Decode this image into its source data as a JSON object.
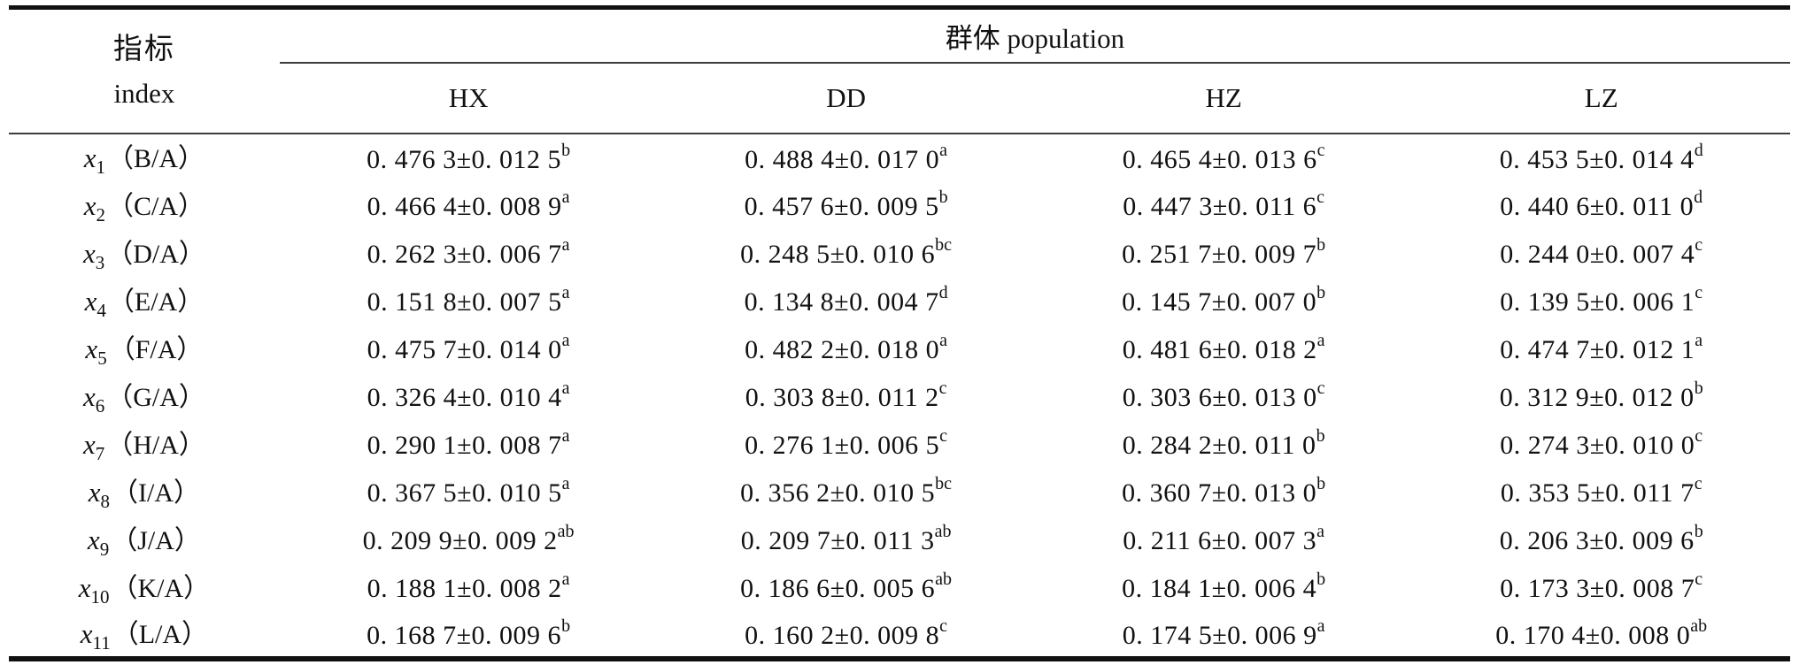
{
  "table": {
    "header": {
      "index_label_zh": "指标",
      "index_label_en": "index",
      "group_label": "群体 population",
      "populations": [
        "HX",
        "DD",
        "HZ",
        "LZ"
      ]
    },
    "rows": [
      {
        "var": "x",
        "sub": "1",
        "ratio": "（B/A）",
        "cells": [
          {
            "v": "0. 476 3±0. 012 5",
            "s": "b"
          },
          {
            "v": "0. 488 4±0. 017 0",
            "s": "a"
          },
          {
            "v": "0. 465 4±0. 013 6",
            "s": "c"
          },
          {
            "v": "0. 453 5±0. 014 4",
            "s": "d"
          }
        ]
      },
      {
        "var": "x",
        "sub": "2",
        "ratio": "（C/A）",
        "cells": [
          {
            "v": "0. 466 4±0. 008 9",
            "s": "a"
          },
          {
            "v": "0. 457 6±0. 009 5",
            "s": "b"
          },
          {
            "v": "0. 447 3±0. 011 6",
            "s": "c"
          },
          {
            "v": "0. 440 6±0. 011 0",
            "s": "d"
          }
        ]
      },
      {
        "var": "x",
        "sub": "3",
        "ratio": "（D/A）",
        "cells": [
          {
            "v": "0. 262 3±0. 006 7",
            "s": "a"
          },
          {
            "v": "0. 248 5±0. 010 6",
            "s": "bc"
          },
          {
            "v": "0. 251 7±0. 009 7",
            "s": "b"
          },
          {
            "v": "0. 244 0±0. 007 4",
            "s": "c"
          }
        ]
      },
      {
        "var": "x",
        "sub": "4",
        "ratio": "（E/A）",
        "cells": [
          {
            "v": "0. 151 8±0. 007 5",
            "s": "a"
          },
          {
            "v": "0. 134 8±0. 004 7",
            "s": "d"
          },
          {
            "v": "0. 145 7±0. 007 0",
            "s": "b"
          },
          {
            "v": "0. 139 5±0. 006 1",
            "s": "c"
          }
        ]
      },
      {
        "var": "x",
        "sub": "5",
        "ratio": "（F/A）",
        "cells": [
          {
            "v": "0. 475 7±0. 014 0",
            "s": "a"
          },
          {
            "v": "0. 482 2±0. 018 0",
            "s": "a"
          },
          {
            "v": "0. 481 6±0. 018 2",
            "s": "a"
          },
          {
            "v": "0. 474 7±0. 012 1",
            "s": "a"
          }
        ]
      },
      {
        "var": "x",
        "sub": "6",
        "ratio": "（G/A）",
        "cells": [
          {
            "v": "0. 326 4±0. 010 4",
            "s": "a"
          },
          {
            "v": "0. 303 8±0. 011 2",
            "s": "c"
          },
          {
            "v": "0. 303 6±0. 013 0",
            "s": "c"
          },
          {
            "v": "0. 312 9±0. 012 0",
            "s": "b"
          }
        ]
      },
      {
        "var": "x",
        "sub": "7",
        "ratio": "（H/A）",
        "cells": [
          {
            "v": "0. 290 1±0. 008 7",
            "s": "a"
          },
          {
            "v": "0. 276 1±0. 006 5",
            "s": "c"
          },
          {
            "v": "0. 284 2±0. 011 0",
            "s": "b"
          },
          {
            "v": "0. 274 3±0. 010 0",
            "s": "c"
          }
        ]
      },
      {
        "var": "x",
        "sub": "8",
        "ratio": "（I/A）",
        "cells": [
          {
            "v": "0. 367 5±0. 010 5",
            "s": "a"
          },
          {
            "v": "0. 356 2±0. 010 5",
            "s": "bc"
          },
          {
            "v": "0. 360 7±0. 013 0",
            "s": "b"
          },
          {
            "v": "0. 353 5±0. 011 7",
            "s": "c"
          }
        ]
      },
      {
        "var": "x",
        "sub": "9",
        "ratio": "（J/A）",
        "cells": [
          {
            "v": "0. 209 9±0. 009 2",
            "s": "ab"
          },
          {
            "v": "0. 209 7±0. 011 3",
            "s": "ab"
          },
          {
            "v": "0. 211 6±0. 007 3",
            "s": "a"
          },
          {
            "v": "0. 206 3±0. 009 6",
            "s": "b"
          }
        ]
      },
      {
        "var": "x",
        "sub": "10",
        "ratio": "（K/A）",
        "cells": [
          {
            "v": "0. 188 1±0. 008 2",
            "s": "a"
          },
          {
            "v": "0. 186 6±0. 005 6",
            "s": "ab"
          },
          {
            "v": "0. 184 1±0. 006 4",
            "s": "b"
          },
          {
            "v": "0. 173 3±0. 008 7",
            "s": "c"
          }
        ]
      },
      {
        "var": "x",
        "sub": "11",
        "ratio": "（L/A）",
        "cells": [
          {
            "v": "0. 168 7±0. 009 6",
            "s": "b"
          },
          {
            "v": "0. 160 2±0. 009 8",
            "s": "c"
          },
          {
            "v": "0. 174 5±0. 006 9",
            "s": "a"
          },
          {
            "v": "0. 170 4±0. 008 0",
            "s": "ab"
          }
        ]
      }
    ]
  }
}
